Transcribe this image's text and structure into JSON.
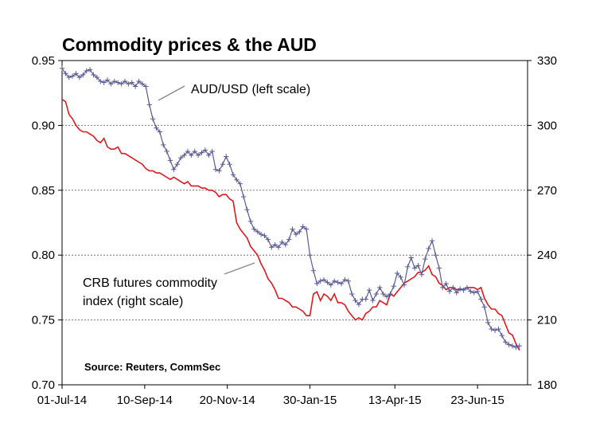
{
  "chart_data": {
    "type": "line",
    "title": "Commodity prices & the AUD",
    "source": "Source: Reuters, CommSec",
    "x_tick_labels": [
      "01-Jul-14",
      "10-Sep-14",
      "20-Nov-14",
      "30-Jan-15",
      "13-Apr-15",
      "23-Jun-15"
    ],
    "x_tick_days": [
      0,
      71,
      142,
      213,
      286,
      357
    ],
    "xlim_days": [
      0,
      400
    ],
    "left_axis": {
      "ylim": [
        0.7,
        0.95
      ],
      "ticks": [
        "0.70",
        "0.75",
        "0.80",
        "0.85",
        "0.90",
        "0.95"
      ],
      "tick_values": [
        0.7,
        0.75,
        0.8,
        0.85,
        0.9,
        0.95
      ]
    },
    "right_axis": {
      "ylim": [
        180,
        330
      ],
      "ticks": [
        "180",
        "210",
        "240",
        "270",
        "300",
        "330"
      ],
      "tick_values": [
        180,
        210,
        240,
        270,
        300,
        330
      ]
    },
    "grid": "horizontal-dotted",
    "annotations": [
      {
        "text": "AUD/USD (left scale)"
      },
      {
        "text": "CRB futures commodity"
      },
      {
        "text": "index (right scale)"
      }
    ],
    "series": [
      {
        "name": "AUD/USD (left scale)",
        "axis": "left",
        "color": "#5a5a96",
        "marker": "plus",
        "points": [
          [
            0,
            0.944
          ],
          [
            3,
            0.94
          ],
          [
            6,
            0.937
          ],
          [
            9,
            0.938
          ],
          [
            12,
            0.94
          ],
          [
            15,
            0.937
          ],
          [
            18,
            0.939
          ],
          [
            21,
            0.942
          ],
          [
            24,
            0.943
          ],
          [
            27,
            0.939
          ],
          [
            30,
            0.937
          ],
          [
            33,
            0.934
          ],
          [
            36,
            0.933
          ],
          [
            39,
            0.935
          ],
          [
            42,
            0.932
          ],
          [
            45,
            0.934
          ],
          [
            48,
            0.933
          ],
          [
            51,
            0.932
          ],
          [
            54,
            0.934
          ],
          [
            57,
            0.932
          ],
          [
            60,
            0.933
          ],
          [
            63,
            0.93
          ],
          [
            66,
            0.934
          ],
          [
            69,
            0.932
          ],
          [
            72,
            0.93
          ],
          [
            75,
            0.916
          ],
          [
            78,
            0.905
          ],
          [
            81,
            0.898
          ],
          [
            84,
            0.895
          ],
          [
            87,
            0.885
          ],
          [
            90,
            0.88
          ],
          [
            93,
            0.873
          ],
          [
            96,
            0.866
          ],
          [
            99,
            0.87
          ],
          [
            102,
            0.875
          ],
          [
            105,
            0.877
          ],
          [
            108,
            0.88
          ],
          [
            111,
            0.877
          ],
          [
            114,
            0.88
          ],
          [
            117,
            0.877
          ],
          [
            120,
            0.879
          ],
          [
            123,
            0.881
          ],
          [
            126,
            0.877
          ],
          [
            129,
            0.88
          ],
          [
            132,
            0.866
          ],
          [
            135,
            0.865
          ],
          [
            138,
            0.87
          ],
          [
            141,
            0.876
          ],
          [
            144,
            0.87
          ],
          [
            147,
            0.862
          ],
          [
            150,
            0.858
          ],
          [
            153,
            0.855
          ],
          [
            156,
            0.845
          ],
          [
            159,
            0.835
          ],
          [
            162,
            0.826
          ],
          [
            165,
            0.82
          ],
          [
            168,
            0.818
          ],
          [
            171,
            0.816
          ],
          [
            174,
            0.815
          ],
          [
            177,
            0.812
          ],
          [
            180,
            0.806
          ],
          [
            183,
            0.808
          ],
          [
            186,
            0.806
          ],
          [
            189,
            0.81
          ],
          [
            192,
            0.808
          ],
          [
            195,
            0.812
          ],
          [
            198,
            0.82
          ],
          [
            201,
            0.816
          ],
          [
            204,
            0.818
          ],
          [
            207,
            0.822
          ],
          [
            210,
            0.82
          ],
          [
            213,
            0.8
          ],
          [
            216,
            0.788
          ],
          [
            219,
            0.778
          ],
          [
            222,
            0.78
          ],
          [
            225,
            0.781
          ],
          [
            228,
            0.779
          ],
          [
            231,
            0.777
          ],
          [
            234,
            0.78
          ],
          [
            237,
            0.779
          ],
          [
            240,
            0.778
          ],
          [
            243,
            0.781
          ],
          [
            246,
            0.78
          ],
          [
            249,
            0.77
          ],
          [
            252,
            0.765
          ],
          [
            255,
            0.762
          ],
          [
            258,
            0.766
          ],
          [
            261,
            0.766
          ],
          [
            264,
            0.773
          ],
          [
            267,
            0.765
          ],
          [
            270,
            0.77
          ],
          [
            273,
            0.775
          ],
          [
            276,
            0.77
          ],
          [
            279,
            0.768
          ],
          [
            282,
            0.77
          ],
          [
            285,
            0.776
          ],
          [
            288,
            0.786
          ],
          [
            291,
            0.783
          ],
          [
            294,
            0.777
          ],
          [
            297,
            0.791
          ],
          [
            300,
            0.798
          ],
          [
            303,
            0.79
          ],
          [
            306,
            0.792
          ],
          [
            309,
            0.785
          ],
          [
            312,
            0.797
          ],
          [
            315,
            0.805
          ],
          [
            318,
            0.811
          ],
          [
            321,
            0.8
          ],
          [
            324,
            0.79
          ],
          [
            327,
            0.775
          ],
          [
            330,
            0.778
          ],
          [
            333,
            0.772
          ],
          [
            336,
            0.775
          ],
          [
            339,
            0.771
          ],
          [
            342,
            0.774
          ],
          [
            345,
            0.773
          ],
          [
            348,
            0.775
          ],
          [
            351,
            0.772
          ],
          [
            354,
            0.771
          ],
          [
            357,
            0.772
          ],
          [
            360,
            0.766
          ],
          [
            363,
            0.76
          ],
          [
            366,
            0.748
          ],
          [
            369,
            0.743
          ],
          [
            372,
            0.742
          ],
          [
            375,
            0.743
          ],
          [
            378,
            0.738
          ],
          [
            381,
            0.733
          ],
          [
            384,
            0.731
          ],
          [
            387,
            0.73
          ],
          [
            390,
            0.729
          ],
          [
            393,
            0.73
          ]
        ]
      },
      {
        "name": "CRB futures commodity index (right scale)",
        "axis": "right",
        "color": "#e0191e",
        "marker": "none",
        "points": [
          [
            0,
            312
          ],
          [
            3,
            311
          ],
          [
            6,
            305
          ],
          [
            9,
            303
          ],
          [
            12,
            300
          ],
          [
            15,
            298
          ],
          [
            18,
            297
          ],
          [
            21,
            297
          ],
          [
            24,
            296
          ],
          [
            27,
            295
          ],
          [
            30,
            293
          ],
          [
            33,
            292
          ],
          [
            36,
            294
          ],
          [
            39,
            290
          ],
          [
            42,
            289
          ],
          [
            45,
            289
          ],
          [
            48,
            290
          ],
          [
            51,
            287
          ],
          [
            54,
            287
          ],
          [
            57,
            286
          ],
          [
            60,
            285
          ],
          [
            63,
            284
          ],
          [
            66,
            283
          ],
          [
            69,
            282
          ],
          [
            72,
            280
          ],
          [
            75,
            279
          ],
          [
            78,
            279
          ],
          [
            81,
            278
          ],
          [
            84,
            278
          ],
          [
            87,
            277
          ],
          [
            90,
            276
          ],
          [
            93,
            275
          ],
          [
            96,
            276
          ],
          [
            99,
            275
          ],
          [
            102,
            274
          ],
          [
            105,
            273
          ],
          [
            108,
            274
          ],
          [
            111,
            272
          ],
          [
            114,
            272
          ],
          [
            117,
            272
          ],
          [
            120,
            271
          ],
          [
            123,
            271
          ],
          [
            126,
            270
          ],
          [
            129,
            270
          ],
          [
            132,
            269
          ],
          [
            135,
            267
          ],
          [
            138,
            268
          ],
          [
            141,
            268
          ],
          [
            144,
            266
          ],
          [
            147,
            265
          ],
          [
            150,
            255
          ],
          [
            153,
            252
          ],
          [
            156,
            250
          ],
          [
            159,
            248
          ],
          [
            162,
            244
          ],
          [
            165,
            242
          ],
          [
            168,
            240
          ],
          [
            171,
            236
          ],
          [
            174,
            233
          ],
          [
            177,
            229
          ],
          [
            180,
            227
          ],
          [
            183,
            224
          ],
          [
            186,
            220
          ],
          [
            189,
            220
          ],
          [
            192,
            219
          ],
          [
            195,
            218
          ],
          [
            198,
            216
          ],
          [
            201,
            216
          ],
          [
            204,
            215
          ],
          [
            207,
            214
          ],
          [
            210,
            212
          ],
          [
            213,
            212
          ],
          [
            216,
            222
          ],
          [
            219,
            223
          ],
          [
            222,
            219
          ],
          [
            225,
            222
          ],
          [
            228,
            221
          ],
          [
            231,
            219
          ],
          [
            234,
            222
          ],
          [
            237,
            218
          ],
          [
            240,
            218
          ],
          [
            243,
            217
          ],
          [
            246,
            214
          ],
          [
            249,
            212
          ],
          [
            252,
            210
          ],
          [
            255,
            211
          ],
          [
            258,
            210
          ],
          [
            261,
            213
          ],
          [
            264,
            214
          ],
          [
            267,
            216
          ],
          [
            270,
            216
          ],
          [
            273,
            219
          ],
          [
            276,
            218
          ],
          [
            279,
            217
          ],
          [
            282,
            222
          ],
          [
            285,
            221
          ],
          [
            288,
            223
          ],
          [
            291,
            225
          ],
          [
            294,
            227
          ],
          [
            297,
            228
          ],
          [
            300,
            229
          ],
          [
            303,
            230
          ],
          [
            306,
            232
          ],
          [
            309,
            232
          ],
          [
            312,
            233
          ],
          [
            315,
            235
          ],
          [
            318,
            231
          ],
          [
            321,
            230
          ],
          [
            324,
            227
          ],
          [
            327,
            226
          ],
          [
            330,
            224
          ],
          [
            333,
            225
          ],
          [
            336,
            225
          ],
          [
            339,
            224
          ],
          [
            342,
            224
          ],
          [
            345,
            224
          ],
          [
            348,
            225
          ],
          [
            351,
            225
          ],
          [
            354,
            225
          ],
          [
            357,
            224
          ],
          [
            360,
            225
          ],
          [
            363,
            220
          ],
          [
            366,
            217
          ],
          [
            369,
            215
          ],
          [
            372,
            215
          ],
          [
            375,
            213
          ],
          [
            378,
            212
          ],
          [
            381,
            208
          ],
          [
            384,
            204
          ],
          [
            387,
            203
          ],
          [
            390,
            199
          ],
          [
            393,
            196
          ]
        ]
      }
    ]
  }
}
